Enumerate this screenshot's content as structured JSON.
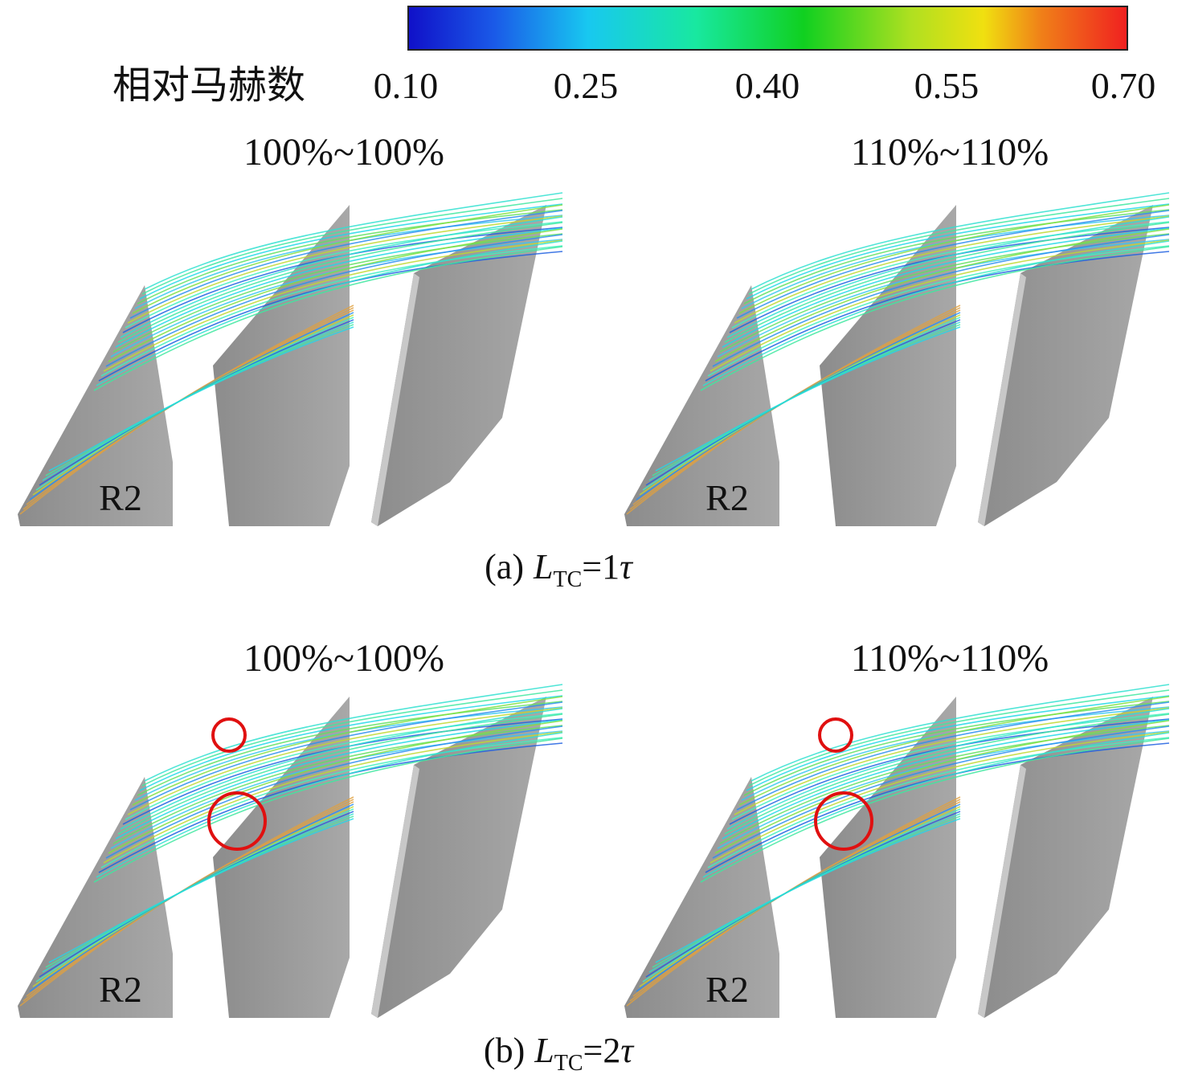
{
  "colorbar": {
    "label": "相对马赫数",
    "ticks": [
      "0.10",
      "0.25",
      "0.40",
      "0.55",
      "0.70"
    ]
  },
  "rows": [
    {
      "panels": [
        {
          "title": "100%~100%",
          "blade_label": "R2"
        },
        {
          "title": "110%~110%",
          "blade_label": "R2"
        }
      ],
      "caption": {
        "label": "(a)",
        "var": "L",
        "sub": "TC",
        "eq": "=1",
        "sym": "τ"
      }
    },
    {
      "panels": [
        {
          "title": "100%~100%",
          "blade_label": "R2"
        },
        {
          "title": "110%~110%",
          "blade_label": "R2"
        }
      ],
      "caption": {
        "label": "(b)",
        "var": "L",
        "sub": "TC",
        "eq": "=2",
        "sym": "τ"
      }
    }
  ]
}
